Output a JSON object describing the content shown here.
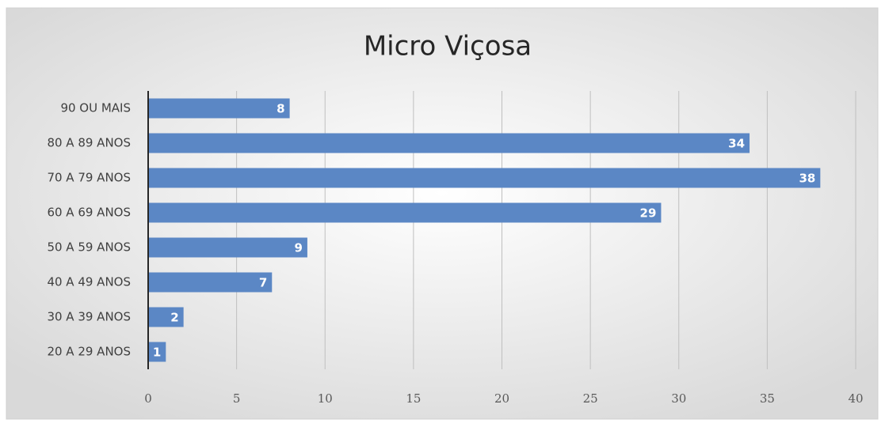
{
  "chart_data": {
    "type": "bar",
    "orientation": "horizontal",
    "title": "Micro Viçosa",
    "categories": [
      "90 OU MAIS",
      "80 A 89 ANOS",
      "70 A 79 ANOS",
      "60 A 69 ANOS",
      "50 A 59 ANOS",
      "40 A 49 ANOS",
      "30 A 39 ANOS",
      "20 A 29 ANOS"
    ],
    "values": [
      8,
      34,
      38,
      29,
      9,
      7,
      2,
      1
    ],
    "color": "#5b87c5",
    "xlim": [
      0,
      40
    ],
    "xticks": [
      0,
      5,
      10,
      15,
      20,
      25,
      30,
      35,
      40
    ],
    "grid": true
  }
}
